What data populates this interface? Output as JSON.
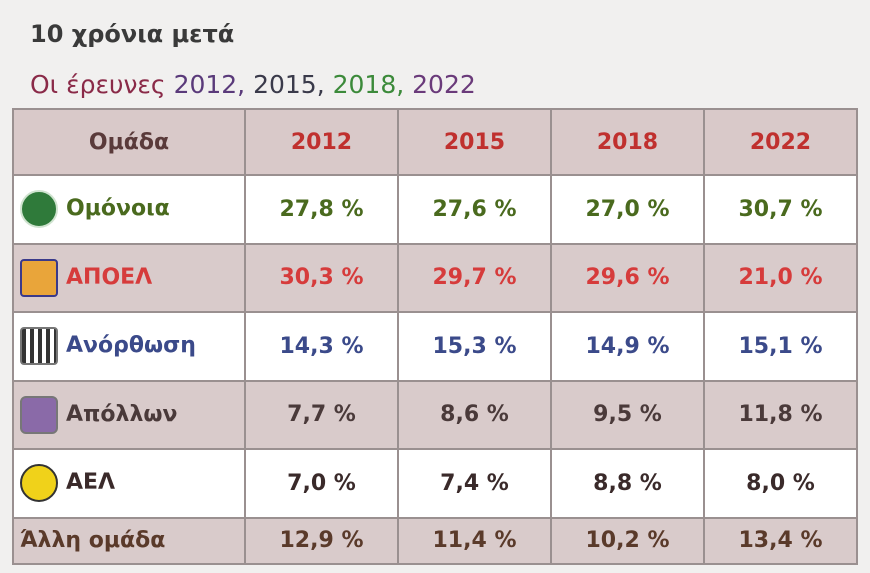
{
  "title": "10 χρόνια μετά",
  "subtitle": [
    "Οι έρευνες",
    "2012,",
    "2015,",
    "2018,",
    "2022"
  ],
  "table": {
    "header": [
      "Ομάδα",
      "2012",
      "2015",
      "2018",
      "2022"
    ],
    "rows": [
      {
        "team": "Ομόνοια",
        "values": [
          "27,8 %",
          "27,6 %",
          "27,0 %",
          "30,7 %"
        ]
      },
      {
        "team": "ΑΠΟΕΛ",
        "values": [
          "30,3 %",
          "29,7 %",
          "29,6 %",
          "21,0 %"
        ]
      },
      {
        "team": "Ανόρθωση",
        "values": [
          "14,3 %",
          "15,3 %",
          "14,9 %",
          "15,1 %"
        ]
      },
      {
        "team": "Απόλλων",
        "values": [
          "7,7 %",
          "8,6 %",
          "9,5 %",
          "11,8 %"
        ]
      },
      {
        "team": "ΑΕΛ",
        "values": [
          "7,0 %",
          "7,4 %",
          "8,8 %",
          "8,0 %"
        ]
      },
      {
        "team": "Άλλη ομάδα",
        "values": [
          "12,9 %",
          "11,4 %",
          "10,2 %",
          "13,4 %"
        ]
      }
    ]
  }
}
